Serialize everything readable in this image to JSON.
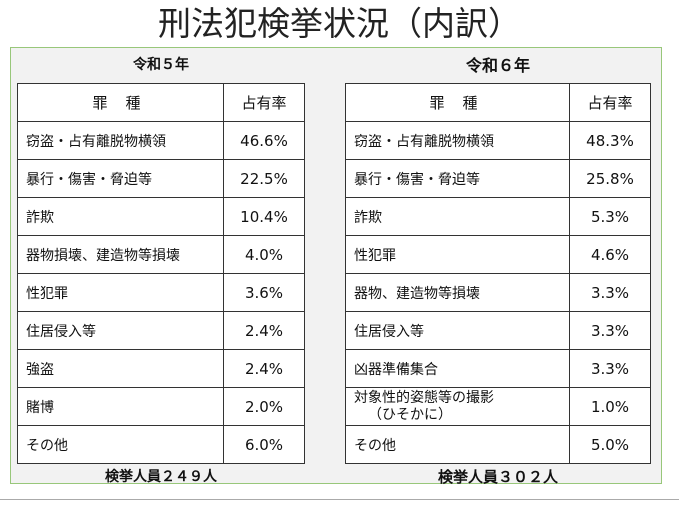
{
  "title": "刑法犯検挙状況（内訳）",
  "left": {
    "year": "令和５年",
    "header": {
      "crime": "罪種",
      "rate": "占有率"
    },
    "rows": [
      {
        "crime": "窃盗・占有離脱物横領",
        "rate": "46.6%"
      },
      {
        "crime": "暴行・傷害・脅迫等",
        "rate": "22.5%"
      },
      {
        "crime": "詐欺",
        "rate": "10.4%"
      },
      {
        "crime": "器物損壊、建造物等損壊",
        "rate": "4.0%"
      },
      {
        "crime": "性犯罪",
        "rate": "3.6%"
      },
      {
        "crime": "住居侵入等",
        "rate": "2.4%"
      },
      {
        "crime": "強盗",
        "rate": "2.4%"
      },
      {
        "crime": "賭博",
        "rate": "2.0%"
      },
      {
        "crime": "その他",
        "rate": "6.0%"
      }
    ],
    "total": "検挙人員２４９人"
  },
  "right": {
    "year": "令和６年",
    "header": {
      "crime": "罪種",
      "rate": "占有率"
    },
    "rows": [
      {
        "crime": "窃盗・占有離脱物横領",
        "rate": "48.3%"
      },
      {
        "crime": "暴行・傷害・脅迫等",
        "rate": "25.8%"
      },
      {
        "crime": "詐欺",
        "rate": "5.3%"
      },
      {
        "crime": "性犯罪",
        "rate": "4.6%"
      },
      {
        "crime": "器物、建造物等損壊",
        "rate": "3.3%"
      },
      {
        "crime": "住居侵入等",
        "rate": "3.3%"
      },
      {
        "crime": "凶器準備集合",
        "rate": "3.3%"
      },
      {
        "crime": "対象性的姿態等の撮影",
        "crime_sub": "（ひそかに）",
        "rate": "1.0%"
      },
      {
        "crime": "その他",
        "rate": "5.0%"
      }
    ],
    "total": "検挙人員３０２人"
  }
}
